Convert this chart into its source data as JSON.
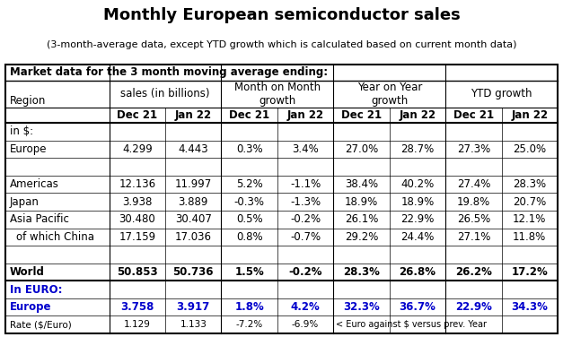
{
  "title": "Monthly European semiconductor sales",
  "subtitle": "(3-month-average data, except YTD growth which is calculated based on current month data)",
  "header1": "Market data for the 3 month moving average ending:",
  "col_groups": [
    "sales (in billions)",
    "Month on Month\ngrowth",
    "Year on Year\ngrowth",
    "YTD growth"
  ],
  "col_sub": [
    "Dec 21",
    "Jan 22",
    "Dec 21",
    "Jan 22",
    "Dec 21",
    "Jan 22",
    "Dec 21",
    "Jan 22"
  ],
  "row_label_col": "Region",
  "rows": [
    {
      "label": "in $:",
      "bold": false,
      "blue": false,
      "small": false,
      "values": [
        "",
        "",
        "",
        "",
        "",
        "",
        "",
        ""
      ]
    },
    {
      "label": "Europe",
      "bold": false,
      "blue": false,
      "small": false,
      "values": [
        "4.299",
        "4.443",
        "0.3%",
        "3.4%",
        "27.0%",
        "28.7%",
        "27.3%",
        "25.0%"
      ]
    },
    {
      "label": "",
      "bold": false,
      "blue": false,
      "small": false,
      "values": [
        "",
        "",
        "",
        "",
        "",
        "",
        "",
        ""
      ]
    },
    {
      "label": "Americas",
      "bold": false,
      "blue": false,
      "small": false,
      "values": [
        "12.136",
        "11.997",
        "5.2%",
        "-1.1%",
        "38.4%",
        "40.2%",
        "27.4%",
        "28.3%"
      ]
    },
    {
      "label": "Japan",
      "bold": false,
      "blue": false,
      "small": false,
      "values": [
        "3.938",
        "3.889",
        "-0.3%",
        "-1.3%",
        "18.9%",
        "18.9%",
        "19.8%",
        "20.7%"
      ]
    },
    {
      "label": "Asia Pacific",
      "bold": false,
      "blue": false,
      "small": false,
      "values": [
        "30.480",
        "30.407",
        "0.5%",
        "-0.2%",
        "26.1%",
        "22.9%",
        "26.5%",
        "12.1%"
      ]
    },
    {
      "label": "of which China",
      "bold": false,
      "blue": false,
      "small": false,
      "indent": true,
      "values": [
        "17.159",
        "17.036",
        "0.8%",
        "-0.7%",
        "29.2%",
        "24.4%",
        "27.1%",
        "11.8%"
      ]
    },
    {
      "label": "",
      "bold": false,
      "blue": false,
      "small": false,
      "values": [
        "",
        "",
        "",
        "",
        "",
        "",
        "",
        ""
      ]
    },
    {
      "label": "World",
      "bold": true,
      "blue": false,
      "small": false,
      "values": [
        "50.853",
        "50.736",
        "1.5%",
        "-0.2%",
        "28.3%",
        "26.8%",
        "26.2%",
        "17.2%"
      ]
    },
    {
      "label": "In EURO:",
      "bold": true,
      "blue": true,
      "small": false,
      "values": [
        "",
        "",
        "",
        "",
        "",
        "",
        "",
        ""
      ]
    },
    {
      "label": "Europe",
      "bold": true,
      "blue": true,
      "small": false,
      "values": [
        "3.758",
        "3.917",
        "1.8%",
        "4.2%",
        "32.3%",
        "36.7%",
        "22.9%",
        "34.3%"
      ]
    },
    {
      "label": "Rate ($/Euro)",
      "bold": false,
      "blue": false,
      "small": true,
      "values": [
        "1.129",
        "1.133",
        "-7.2%",
        "-6.9%",
        "< Euro against $ versus prev. Year",
        "",
        "",
        ""
      ]
    }
  ],
  "blue_color": "#0000CC",
  "title_fontsize": 13,
  "subtitle_fontsize": 8,
  "table_fontsize": 8.5,
  "small_fontsize": 7.5,
  "fig_w": 6.27,
  "fig_h": 3.76,
  "dpi": 100
}
